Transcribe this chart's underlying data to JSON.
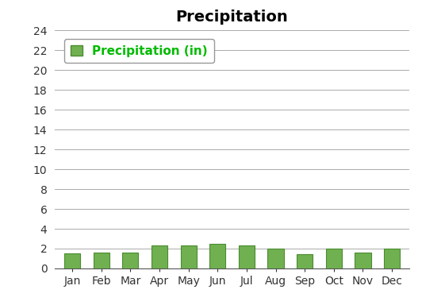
{
  "title": "Precipitation",
  "months": [
    "Jan",
    "Feb",
    "Mar",
    "Apr",
    "May",
    "Jun",
    "Jul",
    "Aug",
    "Sep",
    "Oct",
    "Nov",
    "Dec"
  ],
  "values": [
    1.5,
    1.6,
    1.6,
    2.3,
    2.3,
    2.5,
    2.3,
    2.0,
    1.4,
    2.0,
    1.6,
    2.0
  ],
  "bar_color": "#70b050",
  "bar_edge_color": "#4a8c30",
  "legend_label": "Precipitation (in)",
  "legend_color": "#00bb00",
  "ylim": [
    0,
    24
  ],
  "yticks": [
    0,
    2,
    4,
    6,
    8,
    10,
    12,
    14,
    16,
    18,
    20,
    22,
    24
  ],
  "title_fontsize": 14,
  "tick_fontsize": 10,
  "legend_fontsize": 11,
  "background_color": "#ffffff",
  "grid_color": "#aaaaaa"
}
